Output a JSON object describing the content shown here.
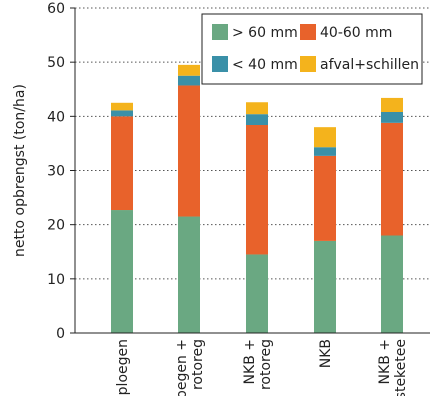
{
  "chart_data": {
    "type": "bar",
    "stacked": true,
    "categories": [
      [
        "ploegen"
      ],
      [
        "ploegen +",
        "rotoreg"
      ],
      [
        "NKB +",
        "rotoreg"
      ],
      [
        "NKB"
      ],
      [
        "NKB +",
        "steketee"
      ]
    ],
    "series": [
      {
        "name": "> 60 mm",
        "color": "#6aa882",
        "values": [
          22.7,
          21.5,
          14.5,
          17.0,
          18.0
        ]
      },
      {
        "name": "40-60 mm",
        "color": "#e8622b",
        "values": [
          17.3,
          24.2,
          23.9,
          15.7,
          20.8
        ]
      },
      {
        "name": "< 40 mm",
        "color": "#3a90a8",
        "values": [
          1.1,
          1.8,
          2.0,
          1.6,
          2.0
        ]
      },
      {
        "name": "afval+schillen",
        "color": "#f4b31c",
        "values": [
          1.4,
          2.0,
          2.2,
          3.7,
          2.6
        ]
      }
    ],
    "ylabel": "netto opbrengst (ton/ha)",
    "xlabel": "",
    "title": "",
    "ylim": [
      0,
      60
    ],
    "yticks": [
      0,
      10,
      20,
      30,
      40,
      50,
      60
    ],
    "grid": "horizontal-dotted",
    "legend_placement": "top-right"
  }
}
